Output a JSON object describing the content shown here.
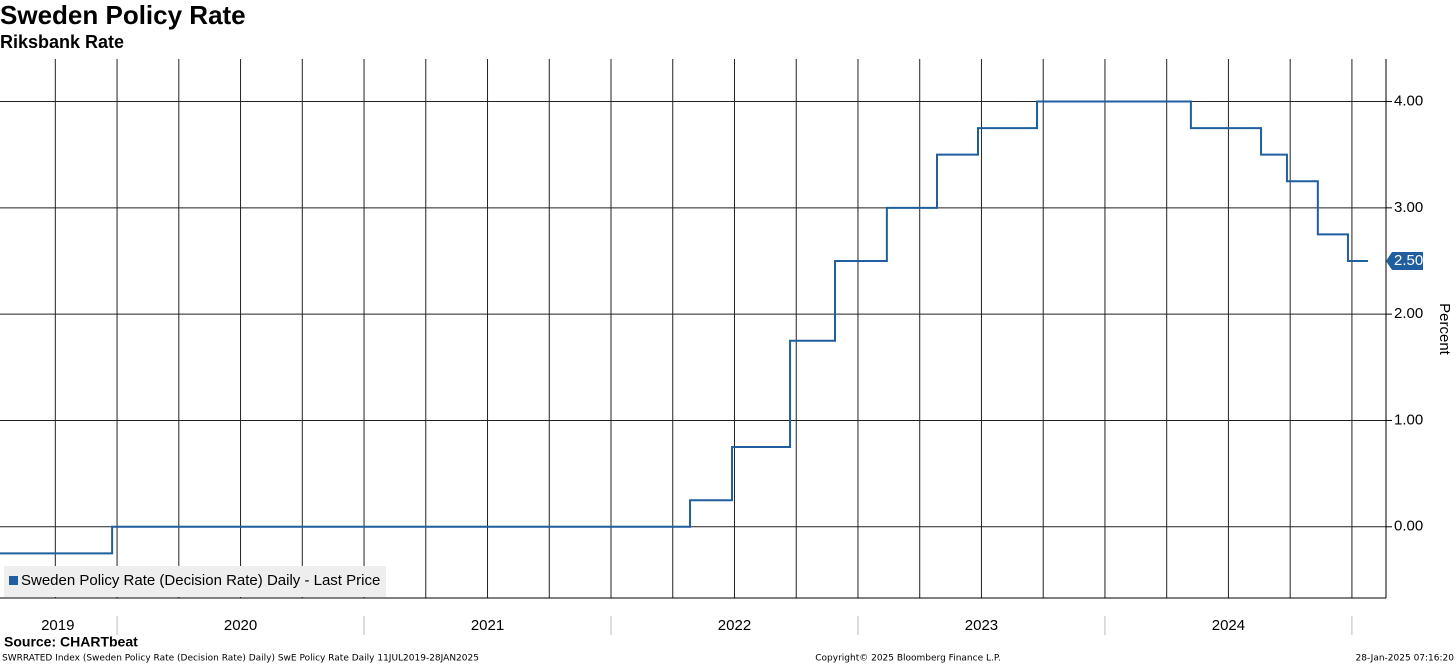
{
  "chart_data": {
    "type": "line",
    "title": "Sweden Policy Rate",
    "subtitle": "Riksbank Rate",
    "y_axis_label": "Percent",
    "source": "Source: CHARTbeat",
    "footer_left": "SWRRATED Index (Sweden Policy Rate (Decision Rate) Daily) SwE Policy Rate  Daily 11JUL2019-28JAN2025",
    "footer_center": "Copyright© 2025 Bloomberg Finance L.P.",
    "footer_right": "28-Jan-2025 07:16:20",
    "xlim": [
      2019.526,
      2025.138
    ],
    "xticks": [
      {
        "value": 2019.76,
        "label": "2019"
      },
      {
        "value": 2020.5,
        "label": "2020"
      },
      {
        "value": 2021.5,
        "label": "2021"
      },
      {
        "value": 2022.5,
        "label": "2022"
      },
      {
        "value": 2023.5,
        "label": "2023"
      },
      {
        "value": 2024.5,
        "label": "2024"
      }
    ],
    "xgrid": [
      2019.75,
      2020,
      2020.25,
      2020.5,
      2020.75,
      2021,
      2021.25,
      2021.5,
      2021.75,
      2022,
      2022.25,
      2022.5,
      2022.75,
      2023,
      2023.25,
      2023.5,
      2023.75,
      2024,
      2024.25,
      2024.5,
      2024.75,
      2025
    ],
    "ylim": [
      -0.67,
      4.4
    ],
    "yticks": [
      {
        "value": 0,
        "label": "0.00"
      },
      {
        "value": 1,
        "label": "1.00"
      },
      {
        "value": 2,
        "label": "2.00"
      },
      {
        "value": 3,
        "label": "3.00"
      },
      {
        "value": 4,
        "label": "4.00"
      }
    ],
    "grid": true,
    "legend": "bottom-left",
    "series": [
      {
        "name": "Sweden Policy Rate (Decision Rate) Daily - Last Price",
        "color": "#1f5fa0",
        "x": [
          2019.526,
          2019.98,
          2019.98,
          2022.32,
          2022.32,
          2022.49,
          2022.49,
          2022.725,
          2022.725,
          2022.907,
          2022.907,
          2023.117,
          2023.117,
          2023.32,
          2023.32,
          2023.486,
          2023.486,
          2023.725,
          2023.725,
          2024.348,
          2024.348,
          2024.632,
          2024.632,
          2024.737,
          2024.737,
          2024.862,
          2024.862,
          2024.984,
          2024.984,
          2025.065
        ],
        "values": [
          -0.25,
          -0.25,
          0,
          0,
          0.25,
          0.25,
          0.75,
          0.75,
          1.75,
          1.75,
          2.5,
          2.5,
          3,
          3,
          3.5,
          3.5,
          3.75,
          3.75,
          4,
          4,
          3.75,
          3.75,
          3.5,
          3.5,
          3.25,
          3.25,
          2.75,
          2.75,
          2.5,
          2.5
        ]
      }
    ],
    "last_price": {
      "value": 2.5,
      "label": "2.50"
    }
  }
}
